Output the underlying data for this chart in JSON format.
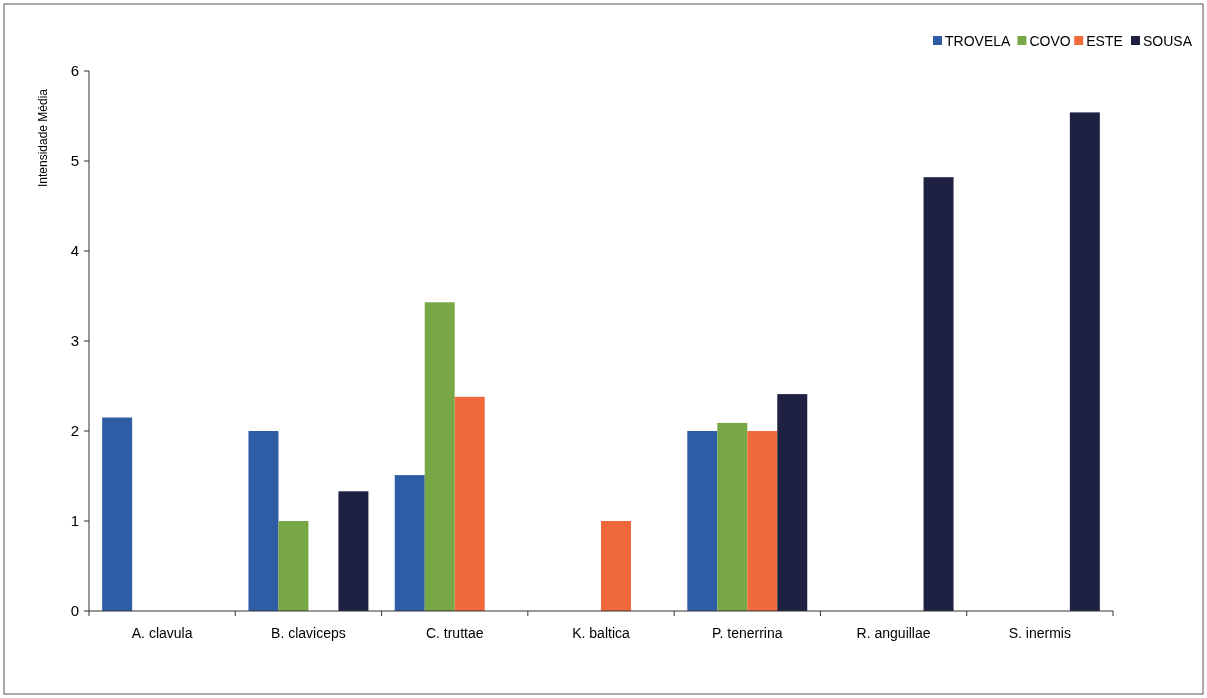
{
  "chart_data": {
    "type": "bar",
    "ylabel": "Intensidade Média",
    "categories": [
      "A. clavula",
      "B. claviceps",
      "C. truttae",
      "K. baltica",
      "P. tenerrina",
      "R. anguillae",
      "S. inermis"
    ],
    "series": [
      {
        "name": "TROVELA",
        "color": "#2e5ca5",
        "values": [
          2.15,
          2.0,
          1.51,
          null,
          2.0,
          null,
          null
        ]
      },
      {
        "name": "COVO",
        "color": "#78a845",
        "values": [
          null,
          1.0,
          3.43,
          null,
          2.09,
          null,
          null
        ]
      },
      {
        "name": "ESTE",
        "color": "#f0693a",
        "values": [
          null,
          null,
          2.38,
          1.0,
          2.0,
          null,
          null
        ]
      },
      {
        "name": "SOUSA",
        "color": "#1e2142",
        "values": [
          null,
          1.33,
          null,
          null,
          2.41,
          4.82,
          5.54
        ]
      }
    ],
    "ylim": [
      0,
      6
    ],
    "yticks": [
      0,
      1,
      2,
      3,
      4,
      5,
      6
    ],
    "grid": false,
    "legend": "top right"
  }
}
